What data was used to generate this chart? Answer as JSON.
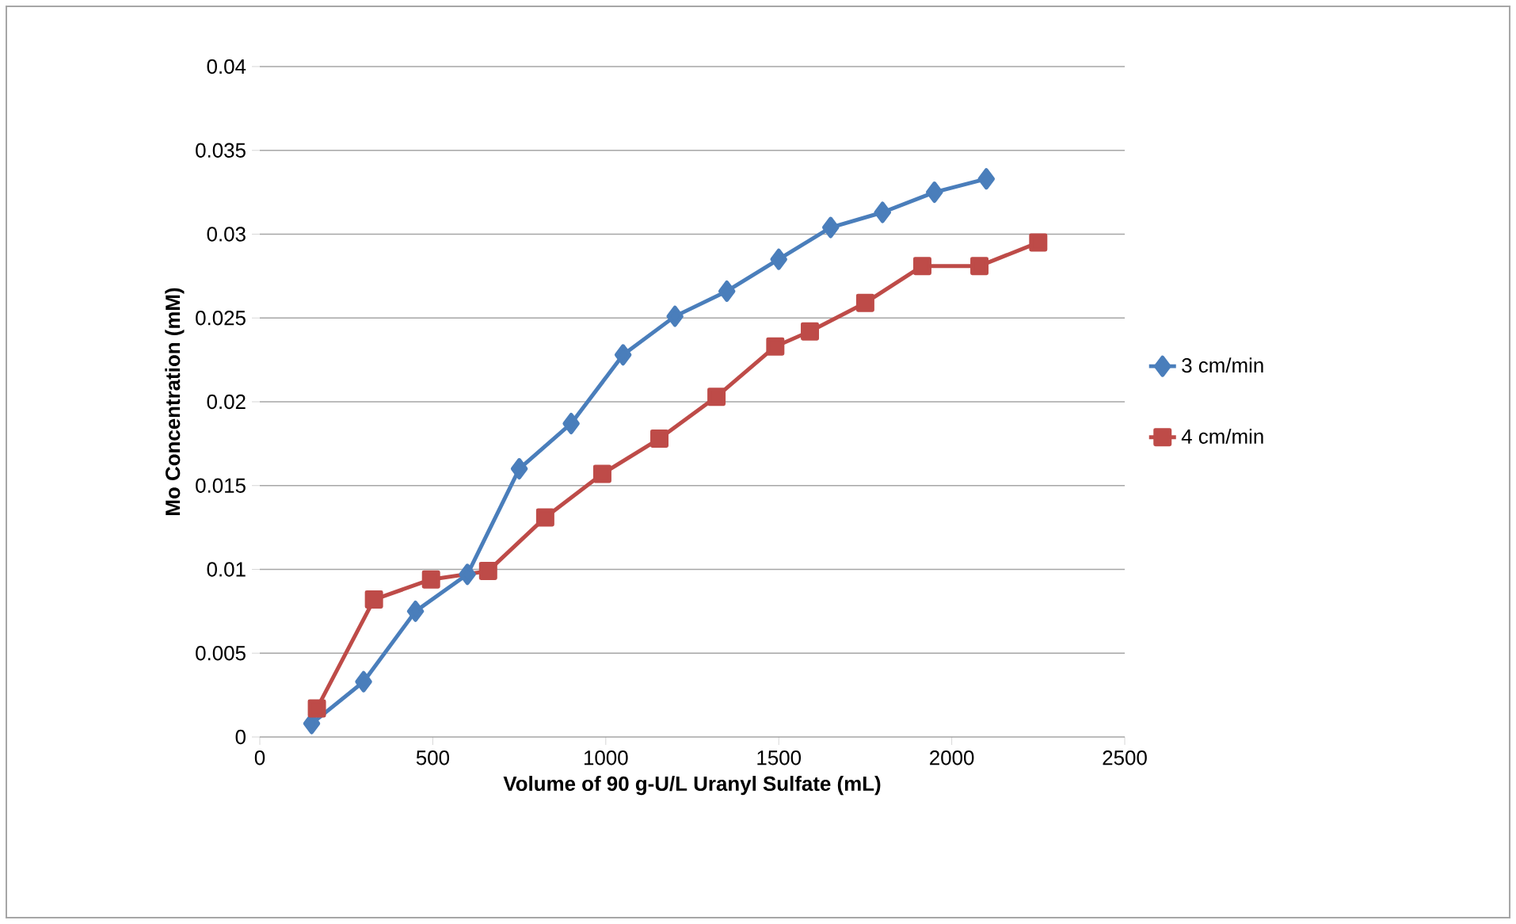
{
  "chart_data": {
    "type": "line",
    "xlabel": "Volume of 90 g-U/L Uranyl Sulfate (mL)",
    "ylabel": "Mo Concentration (mM)",
    "xlim": [
      0,
      2500
    ],
    "xticks": [
      0,
      500,
      1000,
      1500,
      2000,
      2500
    ],
    "ylim": [
      0,
      0.04
    ],
    "yticks": [
      {
        "value": 0,
        "label": "0"
      },
      {
        "value": 0.005,
        "label": "0.005"
      },
      {
        "value": 0.01,
        "label": "0.01"
      },
      {
        "value": 0.015,
        "label": "0.015"
      },
      {
        "value": 0.02,
        "label": "0.02"
      },
      {
        "value": 0.025,
        "label": "0.025"
      },
      {
        "value": 0.03,
        "label": "0.03"
      },
      {
        "value": 0.035,
        "label": "0.035"
      },
      {
        "value": 0.04,
        "label": "0.04"
      }
    ],
    "grid": "y",
    "legend": "right",
    "series": [
      {
        "name": "3 cm/min",
        "color": "#4a7ebb",
        "marker": "diamond",
        "x": [
          150,
          300,
          450,
          600,
          750,
          900,
          1050,
          1200,
          1350,
          1500,
          1650,
          1800,
          1950,
          2100
        ],
        "values": [
          0.0008,
          0.0033,
          0.0075,
          0.0097,
          0.016,
          0.0187,
          0.0228,
          0.0251,
          0.0266,
          0.0285,
          0.0304,
          0.0313,
          0.0325,
          0.0333
        ]
      },
      {
        "name": "4 cm/min",
        "color": "#be4b48",
        "marker": "square",
        "x": [
          165,
          330,
          495,
          660,
          825,
          990,
          1155,
          1320,
          1490,
          1590,
          1750,
          1915,
          2080,
          2250
        ],
        "values": [
          0.0017,
          0.0082,
          0.0094,
          0.0099,
          0.0131,
          0.0157,
          0.0178,
          0.0203,
          0.0233,
          0.0242,
          0.0259,
          0.0281,
          0.0281,
          0.0295
        ]
      }
    ]
  }
}
